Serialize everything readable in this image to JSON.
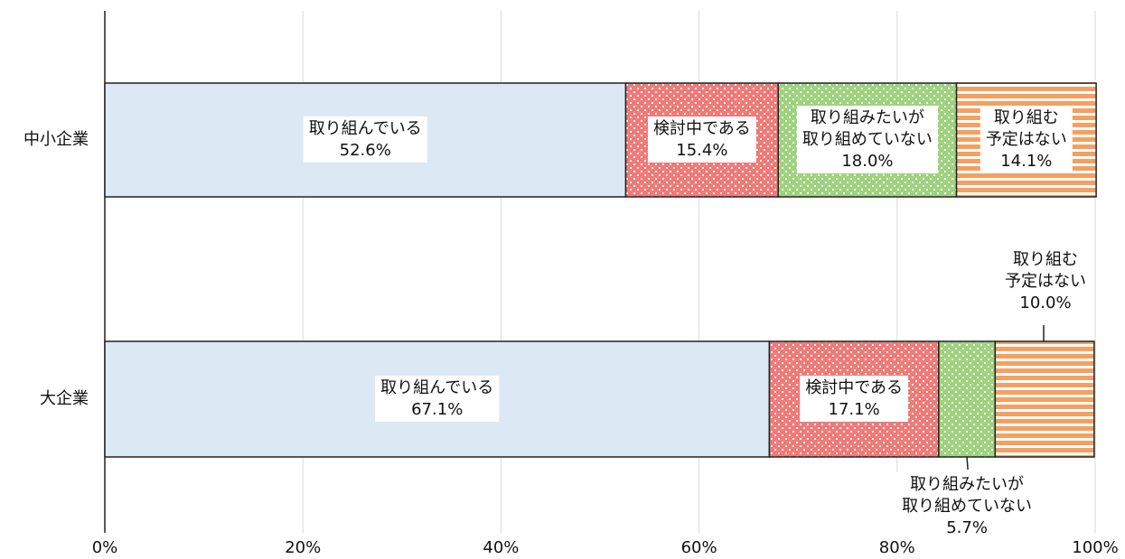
{
  "chart_data": {
    "type": "stacked-bar-horizontal",
    "categories": [
      "中小企業",
      "大企業"
    ],
    "series": [
      {
        "name": "取り組んでいる",
        "color": "#dce9f5",
        "pattern": "solid",
        "values": [
          52.6,
          67.1
        ],
        "value_labels": [
          "52.6%",
          "67.1%"
        ]
      },
      {
        "name": "検討中である",
        "color": "#ee7b78",
        "pattern": "dots",
        "values": [
          15.4,
          17.1
        ],
        "value_labels": [
          "15.4%",
          "17.1%"
        ]
      },
      {
        "name": "取り組みたいが\n取り組めていない",
        "color": "#9fd27f",
        "pattern": "dots",
        "values": [
          18.0,
          5.7
        ],
        "value_labels": [
          "18.0%",
          "5.7%"
        ]
      },
      {
        "name": "取り組む\n予定はない",
        "color": "#f4a062",
        "pattern": "stripes",
        "values": [
          14.1,
          10.0
        ],
        "value_labels": [
          "14.1%",
          "10.0%"
        ]
      }
    ],
    "xlim": [
      0,
      100
    ],
    "xticks": [
      {
        "value": 0,
        "label": "0%"
      },
      {
        "value": 20,
        "label": "20%"
      },
      {
        "value": 40,
        "label": "40%"
      },
      {
        "value": 60,
        "label": "60%"
      },
      {
        "value": 80,
        "label": "80%"
      },
      {
        "value": 100,
        "label": "100%"
      }
    ],
    "grid": true
  }
}
